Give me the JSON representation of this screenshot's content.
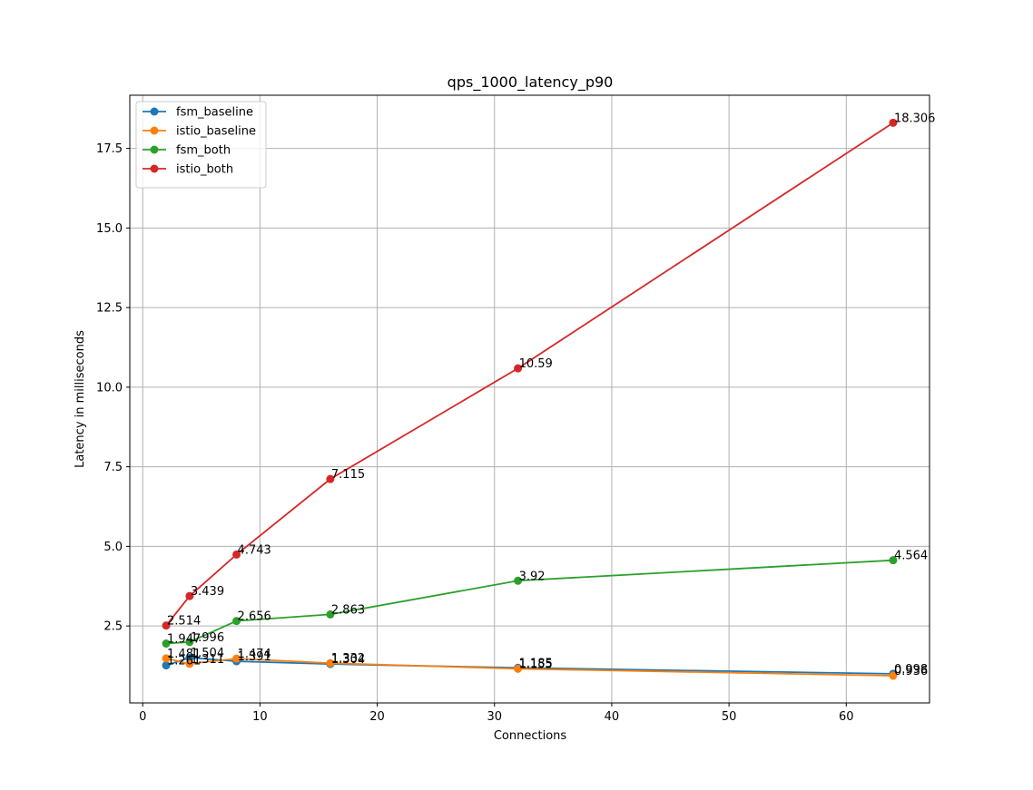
{
  "chart_data": {
    "type": "line",
    "title": "qps_1000_latency_p90",
    "xlabel": "Connections",
    "ylabel": "Latency in milliseconds",
    "xlim": [
      -1.1,
      67.1
    ],
    "ylim": [
      0.082,
      19.17
    ],
    "xticks": [
      0,
      10,
      20,
      30,
      40,
      50,
      60
    ],
    "yticks": [
      2.5,
      5.0,
      7.5,
      10.0,
      12.5,
      15.0,
      17.5
    ],
    "xtick_labels": [
      "0",
      "10",
      "20",
      "30",
      "40",
      "50",
      "60"
    ],
    "ytick_labels": [
      "2.5",
      "5.0",
      "7.5",
      "10.0",
      "12.5",
      "15.0",
      "17.5"
    ],
    "grid": true,
    "legend_position": "upper left",
    "x": [
      2,
      4,
      8,
      16,
      32,
      64
    ],
    "series": [
      {
        "name": "fsm_baseline",
        "color": "#1f77b4",
        "values": [
          1.261,
          1.504,
          1.391,
          1.304,
          1.185,
          0.998
        ],
        "labels": [
          "1.261",
          "1.504",
          "1.391",
          "1.304",
          "1.185",
          "0.998"
        ]
      },
      {
        "name": "istio_baseline",
        "color": "#ff7f0e",
        "values": [
          1.481,
          1.311,
          1.474,
          1.332,
          1.155,
          0.936
        ],
        "labels": [
          "1.481",
          "1.311",
          "1.474",
          "1.332",
          "1.155",
          "0.936"
        ]
      },
      {
        "name": "fsm_both",
        "color": "#2ca02c",
        "values": [
          1.947,
          1.996,
          2.656,
          2.863,
          3.92,
          4.564
        ],
        "labels": [
          "1.947",
          "1.996",
          "2.656",
          "2.863",
          "3.92",
          "4.564"
        ]
      },
      {
        "name": "istio_both",
        "color": "#d62728",
        "values": [
          2.514,
          3.439,
          4.743,
          7.115,
          10.59,
          18.306
        ],
        "labels": [
          "2.514",
          "3.439",
          "4.743",
          "7.115",
          "10.59",
          "18.306"
        ]
      }
    ]
  }
}
